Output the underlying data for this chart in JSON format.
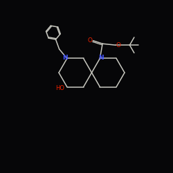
{
  "background": "#060608",
  "bond_color": "#c8c8c0",
  "N_color": "#4455ff",
  "O_color": "#ee2200",
  "figsize": [
    2.5,
    2.5
  ],
  "dpi": 100,
  "lw": 1.1,
  "xlim": [
    0,
    10
  ],
  "ylim": [
    0,
    10
  ],
  "spiro_x": 5.3,
  "spiro_y": 5.8,
  "ring_r": 0.95,
  "ph_r": 0.42
}
